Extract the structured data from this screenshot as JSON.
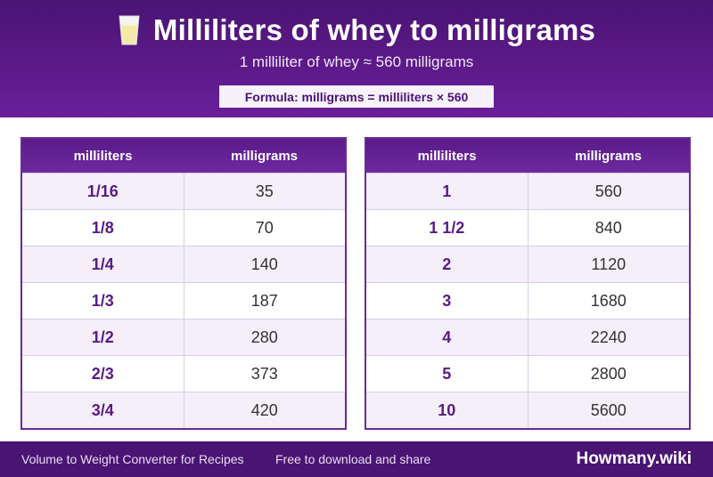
{
  "header": {
    "title": "Milliliters of whey to milligrams",
    "subtitle": "1 milliliter of whey ≈ 560 milligrams",
    "formula": "Formula: milligrams = milliliters × 560",
    "icon": "milk-glass-icon"
  },
  "tables": [
    {
      "col1": "milliliters",
      "col2": "milligrams",
      "rows": [
        {
          "ml": "1/16",
          "mg": "35"
        },
        {
          "ml": "1/8",
          "mg": "70"
        },
        {
          "ml": "1/4",
          "mg": "140"
        },
        {
          "ml": "1/3",
          "mg": "187"
        },
        {
          "ml": "1/2",
          "mg": "280"
        },
        {
          "ml": "2/3",
          "mg": "373"
        },
        {
          "ml": "3/4",
          "mg": "420"
        }
      ]
    },
    {
      "col1": "milliliters",
      "col2": "milligrams",
      "rows": [
        {
          "ml": "1",
          "mg": "560"
        },
        {
          "ml": "1 1/2",
          "mg": "840"
        },
        {
          "ml": "2",
          "mg": "1120"
        },
        {
          "ml": "3",
          "mg": "1680"
        },
        {
          "ml": "4",
          "mg": "2240"
        },
        {
          "ml": "5",
          "mg": "2800"
        },
        {
          "ml": "10",
          "mg": "5600"
        }
      ]
    }
  ],
  "footer": {
    "left": "Volume to Weight Converter for Recipes",
    "middle": "Free to download and share",
    "brand": "Howmany.wiki"
  }
}
